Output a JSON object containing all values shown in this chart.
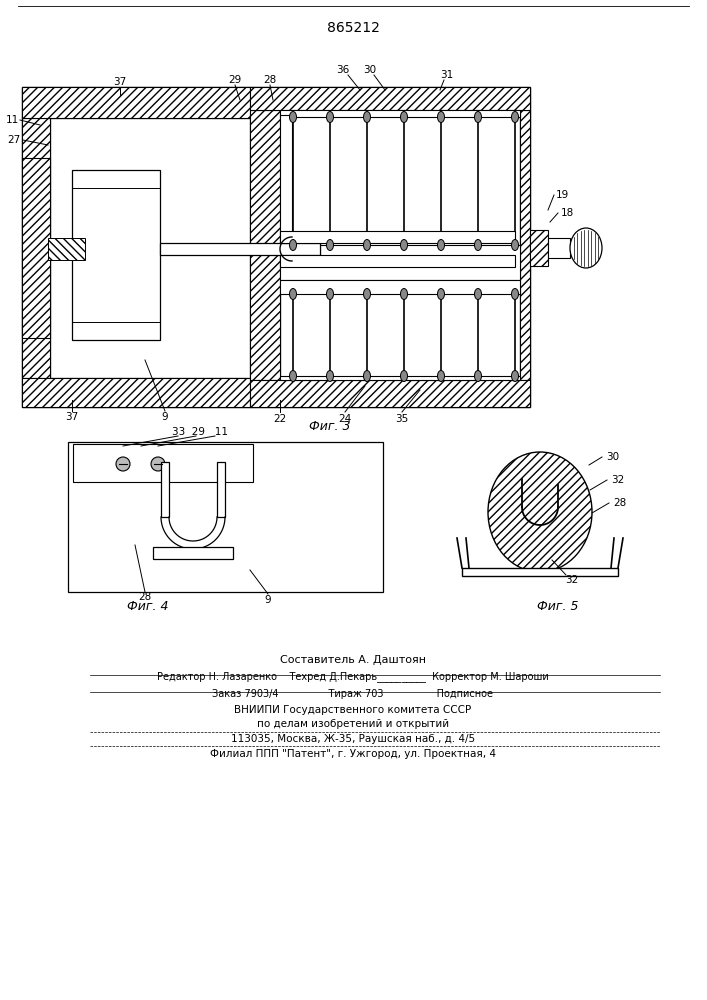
{
  "patent_number": "865212",
  "fig3_label": "Фиг. 3",
  "fig4_label": "Фиг. 4",
  "fig5_label": "Фиг. 5",
  "footer": [
    "Составитель А. Даштоян",
    "Редактор Н. Лазаренко    Техред Д.Пекарь__________  Корректор М. Шароши",
    "Заказ 7903/4                Тираж 703                 Подписное",
    "ВНИИПИ Государственного комитета СССР",
    "по делам изобретений и открытий",
    "113035, Москва, Ж-35, Раушская наб., д. 4/5",
    "Филиал ППП \"Патент\", г. Ужгород, ул. Проектная, 4"
  ],
  "bg_color": "#ffffff"
}
